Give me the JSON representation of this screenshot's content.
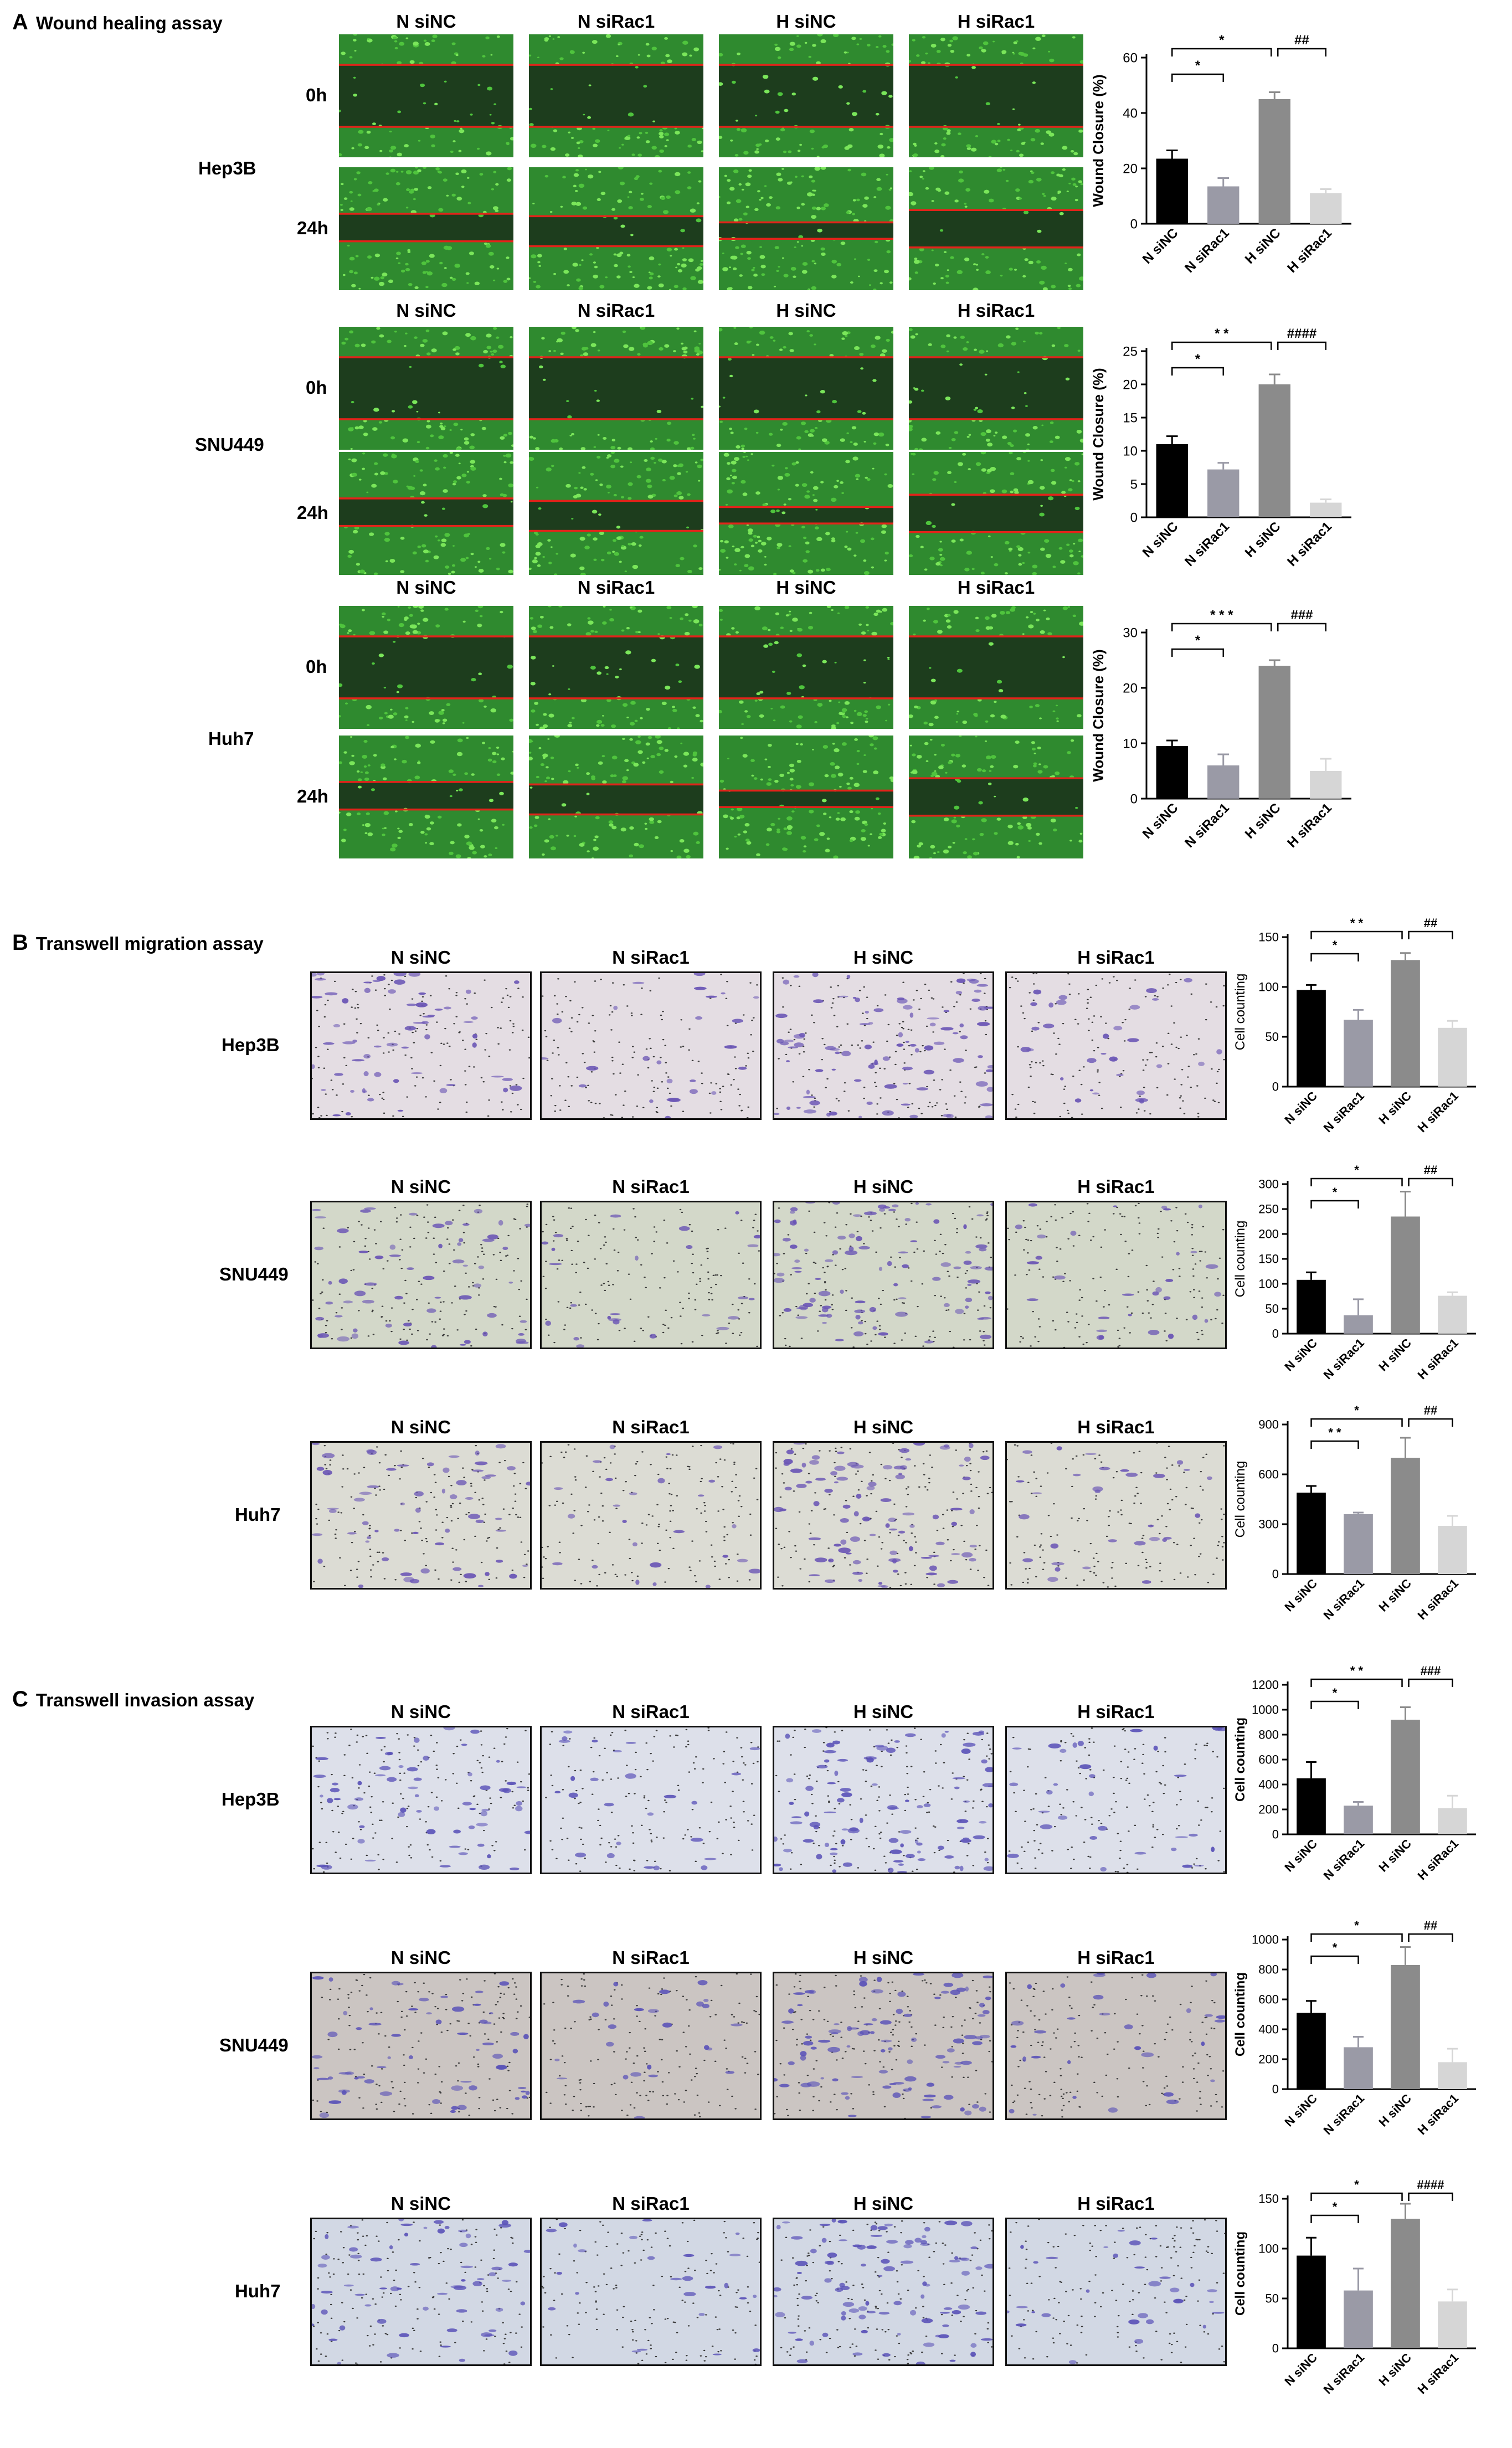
{
  "columns": [
    "N siNC",
    "N siRac1",
    "H siNC",
    "H siRac1"
  ],
  "time_labels": [
    "0h",
    "24h"
  ],
  "colors": {
    "bar1": "#000000",
    "bar2": "#9a9aa6",
    "bar3": "#8b8b8b",
    "bar4": "#d6d6d6",
    "wound_line": "#e2231a"
  },
  "sections": [
    {
      "letter": "A",
      "title": "Wound healing assay",
      "panels": [
        {
          "cell_line": "Hep3B"
        },
        {
          "cell_line": "SNU449"
        },
        {
          "cell_line": "Huh7"
        }
      ]
    },
    {
      "letter": "B",
      "title": "Transwell migration assay",
      "panels": [
        {
          "cell_line": "Hep3B"
        },
        {
          "cell_line": "SNU449"
        },
        {
          "cell_line": "Huh7"
        }
      ]
    },
    {
      "letter": "C",
      "title": "Transwell invasion assay",
      "panels": [
        {
          "cell_line": "Hep3B"
        },
        {
          "cell_line": "SNU449"
        },
        {
          "cell_line": "Huh7"
        }
      ]
    }
  ],
  "chart_data": [
    {
      "type": "bar",
      "categories": [
        "N siNC",
        "N siRac1",
        "H siNC",
        "H siRac1"
      ],
      "values": [
        23.5,
        13.5,
        45,
        11
      ],
      "errors": [
        3,
        3,
        2.5,
        1.5
      ],
      "ylabel": "Wound Closure (%)",
      "ylim": [
        0,
        60
      ],
      "yticks": [
        0,
        20,
        40,
        60
      ],
      "brackets": [
        {
          "from": 0,
          "to": 1,
          "label": "*"
        },
        {
          "from": 0,
          "to": 2,
          "label": "*"
        },
        {
          "from": 2,
          "to": 3,
          "label": "##"
        }
      ]
    },
    {
      "type": "bar",
      "categories": [
        "N siNC",
        "N siRac1",
        "H siNC",
        "H siRac1"
      ],
      "values": [
        11,
        7.2,
        20,
        2.2
      ],
      "errors": [
        1.2,
        1,
        1.5,
        0.5
      ],
      "ylabel": "Wound Closure (%)",
      "ylim": [
        0,
        25
      ],
      "yticks": [
        0,
        5,
        10,
        15,
        20,
        25
      ],
      "brackets": [
        {
          "from": 0,
          "to": 1,
          "label": "*"
        },
        {
          "from": 0,
          "to": 2,
          "label": "* *"
        },
        {
          "from": 2,
          "to": 3,
          "label": "####"
        }
      ]
    },
    {
      "type": "bar",
      "categories": [
        "N siNC",
        "N siRac1",
        "H siNC",
        "H siRac1"
      ],
      "values": [
        9.5,
        6,
        24,
        5
      ],
      "errors": [
        1,
        2,
        1,
        2.2
      ],
      "ylabel": "Wound Closure (%)",
      "ylim": [
        0,
        30
      ],
      "yticks": [
        0,
        10,
        20,
        30
      ],
      "brackets": [
        {
          "from": 0,
          "to": 1,
          "label": "*"
        },
        {
          "from": 0,
          "to": 2,
          "label": "* * *"
        },
        {
          "from": 2,
          "to": 3,
          "label": "###"
        }
      ]
    },
    {
      "type": "bar",
      "categories": [
        "N siNC",
        "N siRac1",
        "H siNC",
        "H siRac1"
      ],
      "values": [
        97,
        67,
        127,
        59
      ],
      "errors": [
        5,
        10,
        7,
        7
      ],
      "ylabel": "Cell counting",
      "ylim": [
        0,
        150
      ],
      "yticks": [
        0,
        50,
        100,
        150
      ],
      "brackets": [
        {
          "from": 0,
          "to": 1,
          "label": "*"
        },
        {
          "from": 0,
          "to": 2,
          "label": "* *"
        },
        {
          "from": 2,
          "to": 3,
          "label": "##"
        }
      ]
    },
    {
      "type": "bar",
      "categories": [
        "N siNC",
        "N siRac1",
        "H siNC",
        "H siRac1"
      ],
      "values": [
        108,
        37,
        235,
        76
      ],
      "errors": [
        15,
        32,
        50,
        7
      ],
      "ylabel": "Cell counting",
      "ylim": [
        0,
        300
      ],
      "yticks": [
        0,
        50,
        100,
        150,
        200,
        250,
        300
      ],
      "brackets": [
        {
          "from": 0,
          "to": 1,
          "label": "*"
        },
        {
          "from": 0,
          "to": 2,
          "label": "*"
        },
        {
          "from": 2,
          "to": 3,
          "label": "##"
        }
      ]
    },
    {
      "type": "bar",
      "categories": [
        "N siNC",
        "N siRac1",
        "H siNC",
        "H siRac1"
      ],
      "values": [
        490,
        360,
        700,
        290
      ],
      "errors": [
        40,
        10,
        120,
        60
      ],
      "ylabel": "Cell counting",
      "ylim": [
        0,
        900
      ],
      "yticks": [
        0,
        300,
        600,
        900
      ],
      "brackets": [
        {
          "from": 0,
          "to": 1,
          "label": "* *"
        },
        {
          "from": 0,
          "to": 2,
          "label": "*"
        },
        {
          "from": 2,
          "to": 3,
          "label": "##"
        }
      ]
    },
    {
      "type": "bar",
      "categories": [
        "N siNC",
        "N siRac1",
        "H siNC",
        "H siRac1"
      ],
      "values": [
        450,
        230,
        920,
        210
      ],
      "errors": [
        130,
        30,
        100,
        100
      ],
      "ylabel": "Cell counting",
      "ylim": [
        0,
        1200
      ],
      "yticks": [
        0,
        200,
        400,
        600,
        800,
        1000,
        1200
      ],
      "brackets": [
        {
          "from": 0,
          "to": 1,
          "label": "*"
        },
        {
          "from": 0,
          "to": 2,
          "label": "* *"
        },
        {
          "from": 2,
          "to": 3,
          "label": "###"
        }
      ]
    },
    {
      "type": "bar",
      "categories": [
        "N siNC",
        "N siRac1",
        "H siNC",
        "H siRac1"
      ],
      "values": [
        510,
        280,
        830,
        180
      ],
      "errors": [
        80,
        70,
        120,
        90
      ],
      "ylabel": "Cell counting",
      "ylim": [
        0,
        1000
      ],
      "yticks": [
        0,
        200,
        400,
        600,
        800,
        1000
      ],
      "brackets": [
        {
          "from": 0,
          "to": 1,
          "label": "*"
        },
        {
          "from": 0,
          "to": 2,
          "label": "*"
        },
        {
          "from": 2,
          "to": 3,
          "label": "##"
        }
      ]
    },
    {
      "type": "bar",
      "categories": [
        "N siNC",
        "N siRac1",
        "H siNC",
        "H siRac1"
      ],
      "values": [
        93,
        58,
        130,
        47
      ],
      "errors": [
        18,
        22,
        15,
        12
      ],
      "ylabel": "Cell counting",
      "ylim": [
        0,
        150
      ],
      "yticks": [
        0,
        50,
        100,
        150
      ],
      "brackets": [
        {
          "from": 0,
          "to": 1,
          "label": "*"
        },
        {
          "from": 0,
          "to": 2,
          "label": "*"
        },
        {
          "from": 2,
          "to": 3,
          "label": "####"
        }
      ]
    }
  ]
}
